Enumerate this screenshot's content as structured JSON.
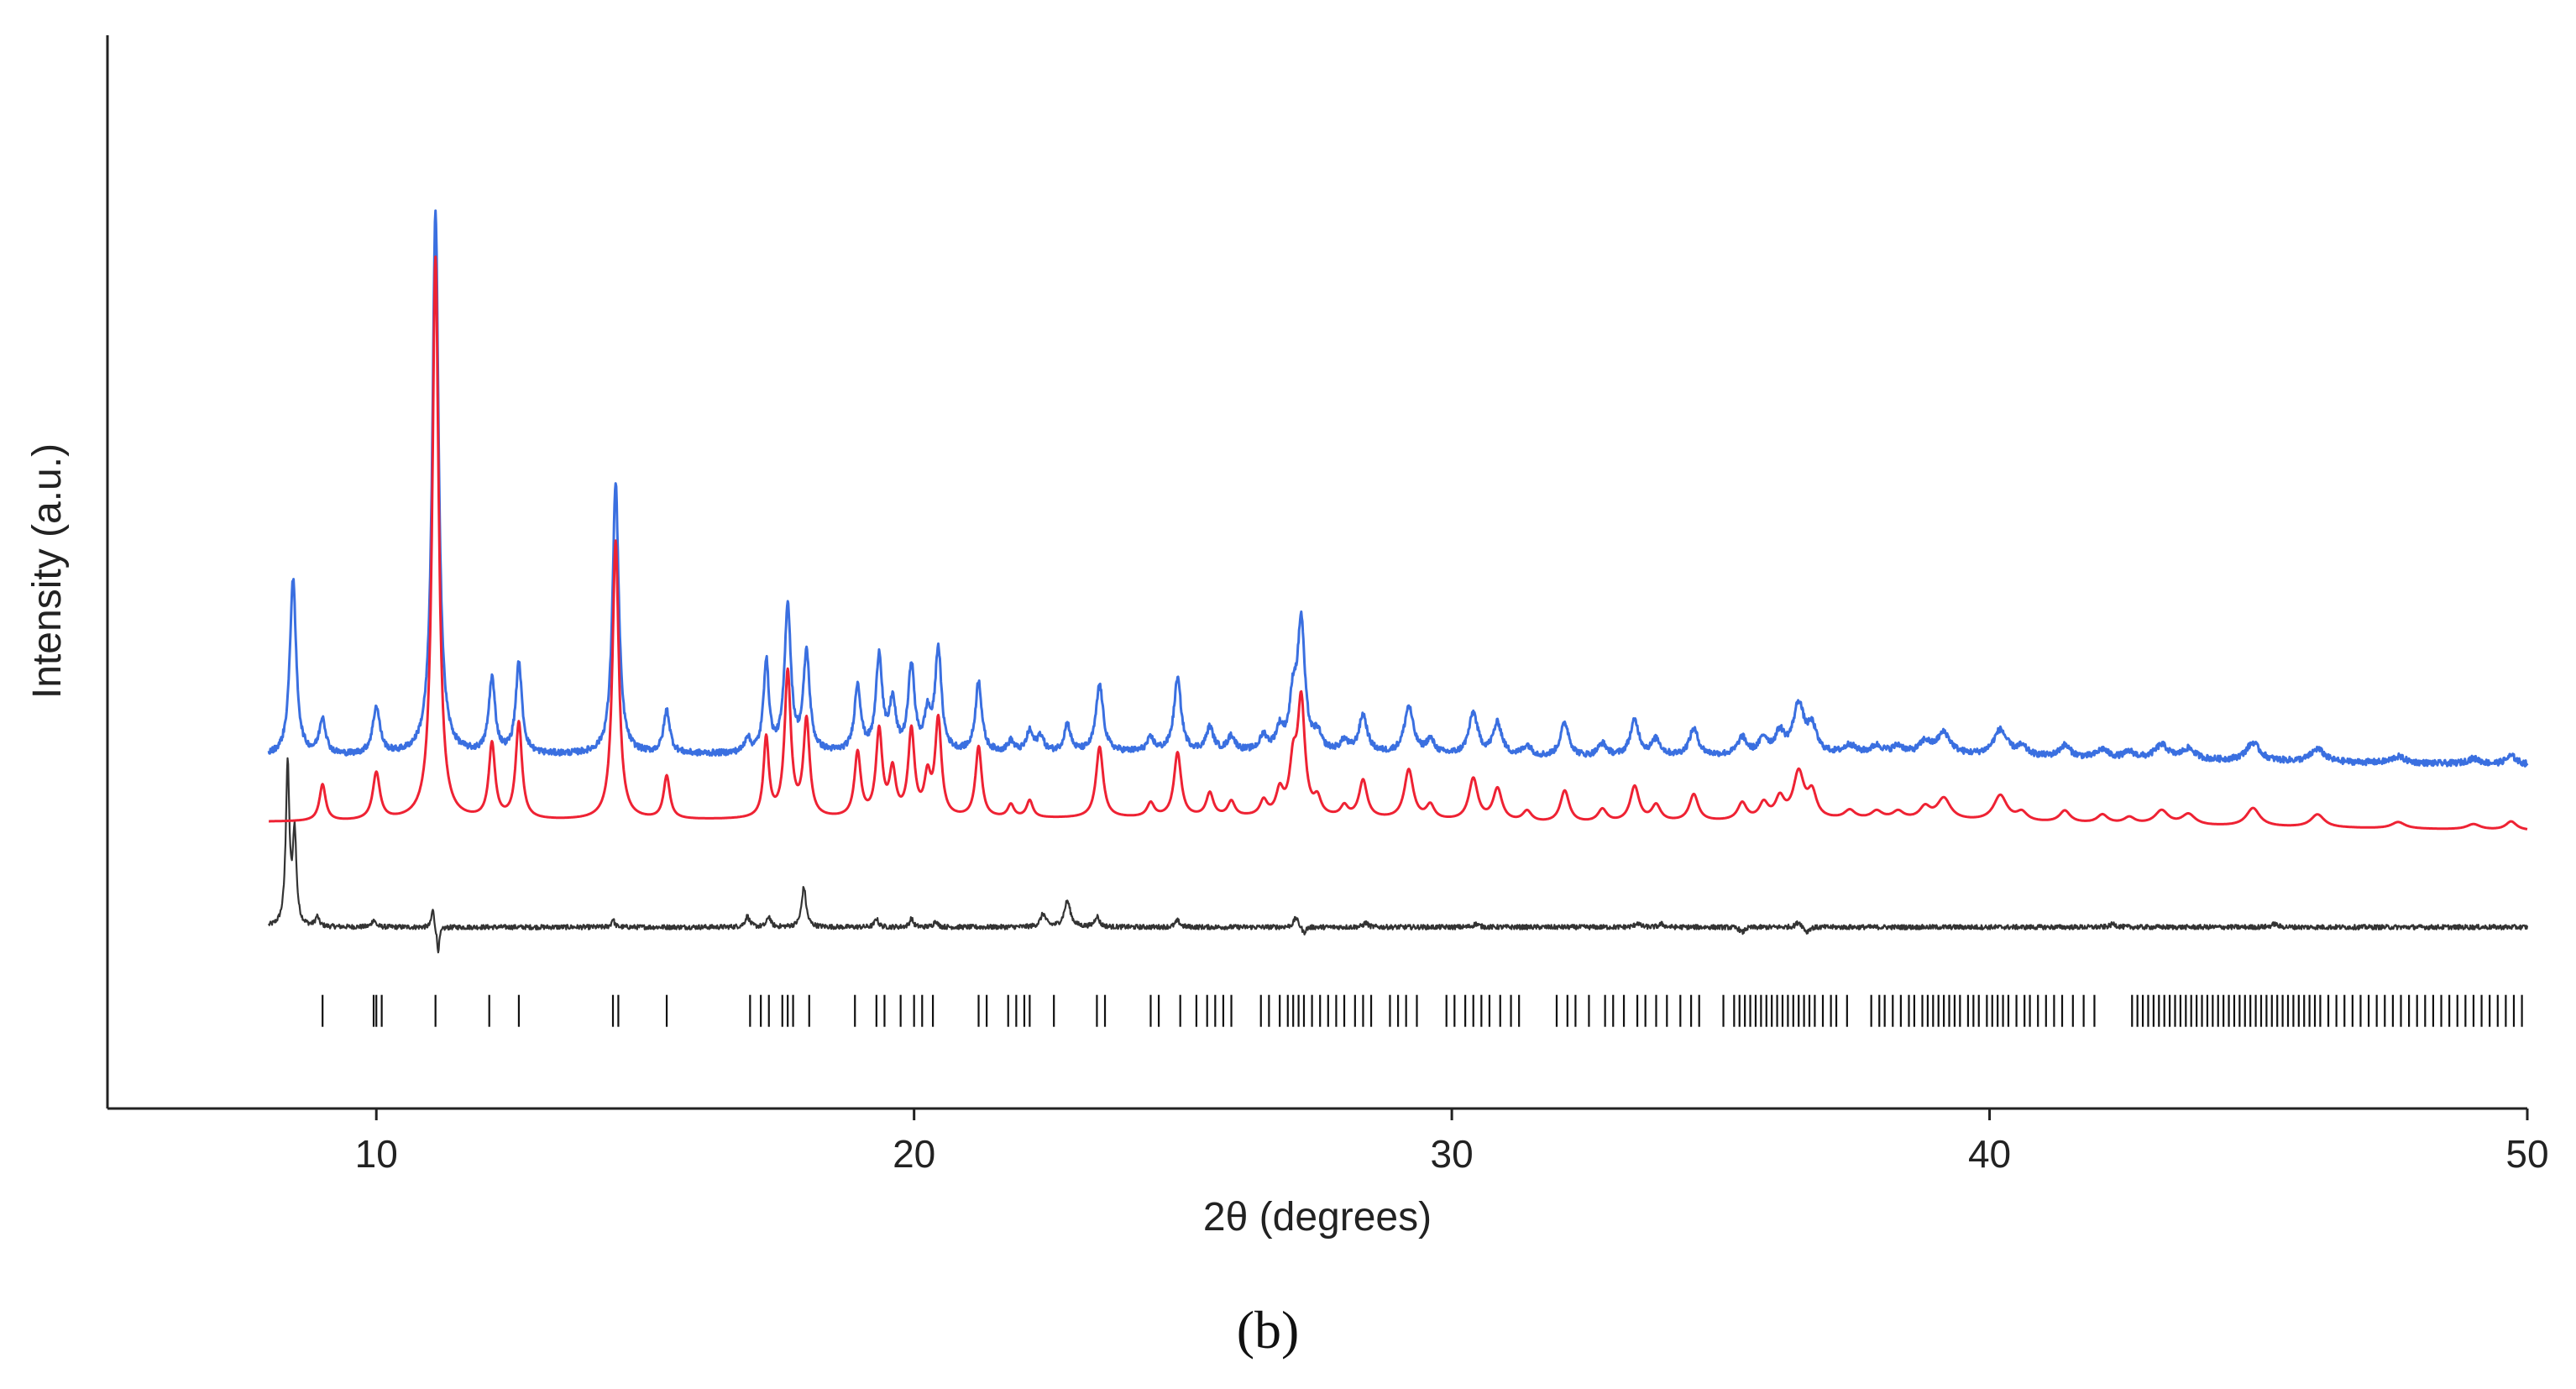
{
  "panel_label": "(b)",
  "colors": {
    "observed": "#3a6fe0",
    "calculated": "#ee2233",
    "difference": "#333333",
    "reflections": "#111111",
    "axis": "#222222"
  },
  "chart_data": {
    "type": "line",
    "title": "",
    "xlabel": "2θ (degrees)",
    "ylabel": "Intensity (a.u.)",
    "xlim": [
      5,
      50
    ],
    "ylim": [
      0,
      100
    ],
    "x_ticks": [
      10,
      20,
      30,
      40,
      50
    ],
    "y_ticks_shown": false,
    "grid": false,
    "legend": "none",
    "x_range": [
      8,
      50
    ],
    "series": [
      {
        "role": "observed",
        "offset": 32.4,
        "baseline": [
          [
            8,
            0.4
          ],
          [
            18,
            0.6
          ],
          [
            27,
            0.8
          ],
          [
            32,
            0.2
          ],
          [
            38,
            0.6
          ],
          [
            44,
            0
          ],
          [
            50,
            -0.4
          ]
        ],
        "peaks": [
          [
            8.45,
            16.5,
            0.07
          ],
          [
            9.0,
            3.4,
            0.07
          ],
          [
            10.0,
            4.4,
            0.08
          ],
          [
            11.1,
            50.5,
            0.07
          ],
          [
            12.15,
            7.0,
            0.07
          ],
          [
            12.65,
            8.4,
            0.07
          ],
          [
            14.45,
            25.2,
            0.07
          ],
          [
            15.4,
            4.0,
            0.07
          ],
          [
            16.9,
            1.4,
            0.06
          ],
          [
            17.25,
            8.5,
            0.06
          ],
          [
            17.65,
            13.7,
            0.07
          ],
          [
            18.0,
            9.2,
            0.07
          ],
          [
            18.95,
            6.2,
            0.07
          ],
          [
            19.35,
            8.9,
            0.07
          ],
          [
            19.6,
            4.5,
            0.07
          ],
          [
            19.95,
            8.0,
            0.07
          ],
          [
            20.25,
            3.2,
            0.07
          ],
          [
            20.45,
            9.5,
            0.07
          ],
          [
            21.2,
            6.6,
            0.07
          ],
          [
            21.8,
            1.0,
            0.07
          ],
          [
            22.15,
            1.9,
            0.07
          ],
          [
            22.35,
            1.5,
            0.07
          ],
          [
            22.85,
            2.6,
            0.07
          ],
          [
            23.45,
            6.3,
            0.08
          ],
          [
            24.4,
            1.2,
            0.08
          ],
          [
            24.9,
            6.8,
            0.08
          ],
          [
            25.5,
            2.2,
            0.08
          ],
          [
            25.9,
            1.4,
            0.08
          ],
          [
            26.5,
            1.4,
            0.08
          ],
          [
            26.8,
            1.9,
            0.08
          ],
          [
            27.05,
            4.5,
            0.08
          ],
          [
            27.2,
            11.7,
            0.08
          ],
          [
            27.5,
            1.5,
            0.08
          ],
          [
            28.0,
            1.0,
            0.08
          ],
          [
            28.35,
            3.5,
            0.09
          ],
          [
            29.2,
            4.4,
            0.1
          ],
          [
            29.6,
            1.3,
            0.09
          ],
          [
            30.4,
            3.9,
            0.1
          ],
          [
            30.85,
            3.0,
            0.1
          ],
          [
            31.4,
            1.0,
            0.1
          ],
          [
            32.1,
            3.2,
            0.1
          ],
          [
            32.8,
            1.2,
            0.1
          ],
          [
            33.4,
            3.3,
            0.1
          ],
          [
            33.8,
            1.5,
            0.1
          ],
          [
            34.5,
            2.5,
            0.1
          ],
          [
            35.4,
            1.6,
            0.1
          ],
          [
            35.8,
            1.5,
            0.1
          ],
          [
            36.1,
            1.9,
            0.1
          ],
          [
            36.45,
            4.6,
            0.12
          ],
          [
            36.7,
            2.3,
            0.1
          ],
          [
            37.4,
            0.8,
            0.12
          ],
          [
            37.9,
            0.7,
            0.12
          ],
          [
            38.3,
            0.7,
            0.12
          ],
          [
            38.8,
            1.1,
            0.12
          ],
          [
            39.15,
            2.0,
            0.15
          ],
          [
            40.2,
            2.4,
            0.15
          ],
          [
            40.6,
            0.8,
            0.12
          ],
          [
            41.4,
            1.1,
            0.12
          ],
          [
            42.1,
            0.8,
            0.12
          ],
          [
            42.6,
            0.6,
            0.12
          ],
          [
            43.2,
            1.3,
            0.15
          ],
          [
            43.7,
            1.0,
            0.15
          ],
          [
            44.9,
            1.7,
            0.15
          ],
          [
            46.1,
            1.2,
            0.15
          ],
          [
            47.6,
            0.6,
            0.15
          ],
          [
            49.0,
            0.5,
            0.15
          ],
          [
            49.7,
            0.8,
            0.12
          ]
        ]
      },
      {
        "role": "calculated",
        "offset": 26.3,
        "baseline": [
          [
            8,
            0.4
          ],
          [
            18,
            0.6
          ],
          [
            27,
            0.8
          ],
          [
            32,
            0.2
          ],
          [
            38,
            0.6
          ],
          [
            44,
            0
          ],
          [
            50,
            -0.4
          ]
        ],
        "peaks": [
          [
            9.0,
            3.4,
            0.07
          ],
          [
            10.0,
            4.4,
            0.08
          ],
          [
            11.1,
            52.5,
            0.07
          ],
          [
            12.15,
            7.0,
            0.07
          ],
          [
            12.65,
            9.0,
            0.07
          ],
          [
            14.45,
            26.0,
            0.07
          ],
          [
            15.4,
            4.0,
            0.07
          ],
          [
            17.25,
            7.4,
            0.06
          ],
          [
            17.65,
            13.5,
            0.07
          ],
          [
            18.0,
            9.0,
            0.07
          ],
          [
            18.95,
            6.0,
            0.07
          ],
          [
            19.35,
            8.0,
            0.07
          ],
          [
            19.6,
            4.2,
            0.07
          ],
          [
            19.95,
            8.0,
            0.07
          ],
          [
            20.25,
            3.5,
            0.07
          ],
          [
            20.45,
            9.0,
            0.07
          ],
          [
            21.2,
            6.6,
            0.07
          ],
          [
            21.8,
            1.2,
            0.07
          ],
          [
            22.15,
            1.6,
            0.07
          ],
          [
            23.45,
            6.6,
            0.08
          ],
          [
            24.4,
            1.3,
            0.08
          ],
          [
            24.9,
            6.0,
            0.08
          ],
          [
            25.5,
            2.2,
            0.08
          ],
          [
            25.9,
            1.4,
            0.08
          ],
          [
            26.5,
            1.4,
            0.08
          ],
          [
            26.8,
            2.2,
            0.08
          ],
          [
            27.05,
            4.5,
            0.08
          ],
          [
            27.2,
            10.5,
            0.08
          ],
          [
            27.5,
            1.5,
            0.08
          ],
          [
            28.0,
            1.0,
            0.08
          ],
          [
            28.35,
            3.5,
            0.09
          ],
          [
            29.2,
            4.6,
            0.1
          ],
          [
            29.6,
            1.3,
            0.09
          ],
          [
            30.4,
            3.9,
            0.1
          ],
          [
            30.85,
            3.0,
            0.1
          ],
          [
            31.4,
            1.0,
            0.1
          ],
          [
            32.1,
            3.0,
            0.1
          ],
          [
            32.8,
            1.2,
            0.1
          ],
          [
            33.4,
            3.3,
            0.1
          ],
          [
            33.8,
            1.5,
            0.1
          ],
          [
            34.5,
            2.5,
            0.1
          ],
          [
            35.4,
            1.6,
            0.1
          ],
          [
            35.8,
            1.5,
            0.1
          ],
          [
            36.1,
            1.9,
            0.1
          ],
          [
            36.45,
            4.3,
            0.12
          ],
          [
            36.7,
            2.3,
            0.1
          ],
          [
            37.4,
            0.8,
            0.12
          ],
          [
            37.9,
            0.7,
            0.12
          ],
          [
            38.3,
            0.7,
            0.12
          ],
          [
            38.8,
            1.1,
            0.12
          ],
          [
            39.15,
            2.0,
            0.15
          ],
          [
            40.2,
            2.4,
            0.15
          ],
          [
            40.6,
            0.8,
            0.12
          ],
          [
            41.4,
            1.1,
            0.12
          ],
          [
            42.1,
            0.8,
            0.12
          ],
          [
            42.6,
            0.6,
            0.12
          ],
          [
            43.2,
            1.3,
            0.15
          ],
          [
            43.7,
            1.0,
            0.15
          ],
          [
            44.9,
            1.7,
            0.15
          ],
          [
            46.1,
            1.2,
            0.15
          ],
          [
            47.6,
            0.6,
            0.15
          ],
          [
            49.0,
            0.5,
            0.15
          ],
          [
            49.7,
            0.8,
            0.12
          ]
        ]
      },
      {
        "role": "difference",
        "offset": 16.9,
        "baseline": [
          [
            8,
            0
          ],
          [
            50,
            0
          ]
        ],
        "peaks": [
          [
            8.35,
            15.0,
            0.04
          ],
          [
            8.48,
            8.5,
            0.04
          ],
          [
            8.9,
            0.9,
            0.04
          ],
          [
            9.95,
            0.7,
            0.04
          ],
          [
            11.05,
            1.8,
            0.03
          ],
          [
            11.15,
            -2.3,
            0.03
          ],
          [
            14.4,
            0.8,
            0.03
          ],
          [
            16.9,
            1.0,
            0.05
          ],
          [
            17.3,
            1.0,
            0.04
          ],
          [
            17.95,
            3.7,
            0.05
          ],
          [
            19.3,
            0.8,
            0.04
          ],
          [
            19.95,
            0.8,
            0.04
          ],
          [
            20.4,
            0.6,
            0.04
          ],
          [
            22.4,
            1.2,
            0.06
          ],
          [
            22.85,
            2.4,
            0.07
          ],
          [
            23.4,
            1.0,
            0.05
          ],
          [
            24.9,
            0.6,
            0.05
          ],
          [
            27.1,
            0.9,
            0.05
          ],
          [
            27.25,
            -0.6,
            0.04
          ],
          [
            28.4,
            0.4,
            0.05
          ],
          [
            30.45,
            0.3,
            0.06
          ],
          [
            33.45,
            0.4,
            0.05
          ],
          [
            33.9,
            0.3,
            0.05
          ],
          [
            35.4,
            -0.5,
            0.05
          ],
          [
            36.45,
            0.5,
            0.06
          ],
          [
            36.6,
            -0.5,
            0.05
          ],
          [
            42.3,
            0.3,
            0.06
          ],
          [
            45.3,
            0.3,
            0.06
          ]
        ]
      }
    ],
    "reflection_ticks": {
      "y_center": 9.1,
      "positions": [
        9.0,
        9.95,
        10.0,
        10.1,
        11.1,
        12.1,
        12.65,
        14.4,
        14.5,
        15.4,
        16.95,
        17.15,
        17.3,
        17.55,
        17.65,
        17.75,
        18.05,
        18.9,
        19.3,
        19.45,
        19.75,
        20.0,
        20.15,
        20.35,
        21.2,
        21.35,
        21.75,
        21.9,
        22.05,
        22.15,
        22.6,
        23.4,
        23.55,
        24.4,
        24.55,
        24.95,
        25.25,
        25.45,
        25.6,
        25.75,
        25.9,
        26.45,
        26.6,
        26.8,
        26.95,
        27.05,
        27.15,
        27.25,
        27.4,
        27.55,
        27.7,
        27.85,
        28.0,
        28.2,
        28.35,
        28.5,
        28.85,
        29.0,
        29.15,
        29.35,
        29.9,
        30.05,
        30.25,
        30.4,
        30.55,
        30.7,
        30.9,
        31.1,
        31.25,
        31.95,
        32.15,
        32.3,
        32.55,
        32.85,
        33.0,
        33.2,
        33.45,
        33.6,
        33.8,
        34.0,
        34.25,
        34.45,
        34.6,
        35.05,
        35.25,
        35.35,
        35.45,
        35.55,
        35.65,
        35.75,
        35.85,
        35.95,
        36.05,
        36.15,
        36.25,
        36.35,
        36.45,
        36.55,
        36.65,
        36.75,
        36.9,
        37.05,
        37.15,
        37.35,
        37.8,
        37.95,
        38.05,
        38.2,
        38.35,
        38.5,
        38.6,
        38.75,
        38.85,
        38.95,
        39.05,
        39.15,
        39.25,
        39.35,
        39.45,
        39.6,
        39.7,
        39.8,
        39.95,
        40.05,
        40.15,
        40.25,
        40.35,
        40.5,
        40.65,
        40.75,
        40.9,
        41.05,
        41.2,
        41.35,
        41.55,
        41.75,
        41.95,
        42.65,
        42.75,
        42.85,
        42.95,
        43.05,
        43.15,
        43.25,
        43.35,
        43.45,
        43.55,
        43.65,
        43.75,
        43.85,
        43.95,
        44.05,
        44.15,
        44.25,
        44.35,
        44.45,
        44.55,
        44.65,
        44.75,
        44.85,
        44.95,
        45.05,
        45.15,
        45.25,
        45.35,
        45.45,
        45.55,
        45.65,
        45.75,
        45.85,
        45.95,
        46.05,
        46.15,
        46.3,
        46.45,
        46.6,
        46.75,
        46.9,
        47.05,
        47.2,
        47.35,
        47.5,
        47.65,
        47.8,
        47.95,
        48.1,
        48.25,
        48.4,
        48.55,
        48.7,
        48.85,
        49.0,
        49.15,
        49.3,
        49.45,
        49.6,
        49.75,
        49.9
      ]
    }
  }
}
